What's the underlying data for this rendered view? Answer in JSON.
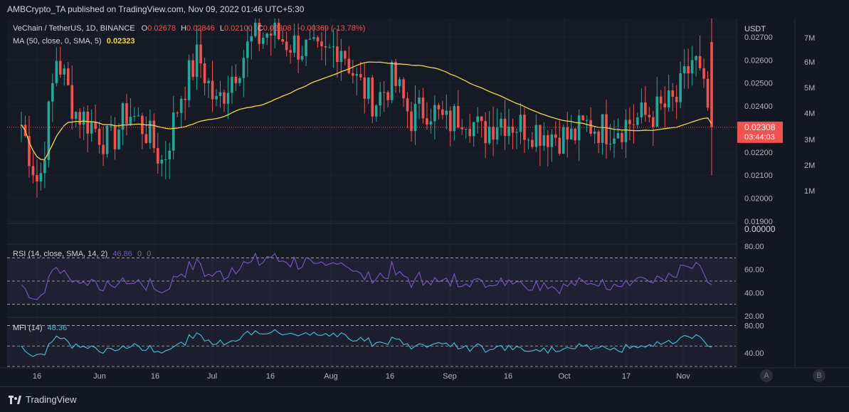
{
  "header": {
    "published": "AMBCrypto_TA published on TradingView.com, Nov 09, 2022 01:46 UTC+5:30"
  },
  "legend": {
    "symbol": "VeChain / TetherUS, 1D, BINANCE",
    "o_label": "O",
    "o": "0.02678",
    "h_label": "H",
    "h": "0.02846",
    "l_label": "L",
    "l": "0.02100",
    "c_label": "C",
    "c": "0.02308",
    "change": "-0.00369 (-13.78%)",
    "ma_label": "MA (50, close, 0, SMA, 5)",
    "ma_value": "0.02323"
  },
  "price_axis": {
    "currency": "USDT",
    "ticks": [
      "0.02700",
      "0.02600",
      "0.02500",
      "0.02400",
      "0.02200",
      "0.02100",
      "0.02000",
      "0.01900"
    ],
    "last_price": "0.02308",
    "countdown": "03:44:03",
    "volume_ticks": [
      "7M",
      "6M",
      "5M",
      "4M",
      "3M",
      "2M",
      "1M"
    ],
    "extra_pane_value": "0.00000"
  },
  "rsi": {
    "label": "RSI (14, close, SMA, 14, 2)",
    "value": "46.86",
    "extra1": "0",
    "extra2": "0",
    "ticks": [
      "80.00",
      "60.00",
      "40.00",
      "20.00"
    ]
  },
  "mfi": {
    "label": "MFI (14)",
    "value": "48.36",
    "ticks": [
      "80.00",
      "40.00"
    ]
  },
  "time_axis": {
    "ticks": [
      "16",
      "Jun",
      "16",
      "Jul",
      "16",
      "Aug",
      "16",
      "Sep",
      "16",
      "Oct",
      "17",
      "Nov"
    ]
  },
  "buttons": {
    "a": "A",
    "b": "B"
  },
  "footer": {
    "brand": "TradingView"
  },
  "colors": {
    "up": "#26a69a",
    "down": "#ef5350",
    "ma": "#f0d84a",
    "rsi": "#7e57c2",
    "mfi": "#3cc6d6",
    "bg": "#161a25"
  },
  "chart_data": {
    "type": "candlestick",
    "title": "VeChain / TetherUS, 1D, BINANCE",
    "series": [
      {
        "name": "VeChain / TetherUS",
        "kind": "ohlc",
        "anchor_closes": [
          0.0232,
          0.0205,
          0.0262,
          0.0238,
          0.0232,
          0.0223,
          0.0238,
          0.023,
          0.0215,
          0.0245,
          0.0262,
          0.024,
          0.0255,
          0.0268,
          0.0272,
          0.0268,
          0.0265,
          0.026,
          0.0268,
          0.025,
          0.0242,
          0.0252,
          0.0235,
          0.024,
          0.0232,
          0.0238,
          0.0228,
          0.0235,
          0.0232,
          0.023,
          0.0228,
          0.0226,
          0.0232,
          0.023,
          0.0232,
          0.0235,
          0.0238,
          0.0242,
          0.0262,
          0.0232
        ],
        "last": {
          "open": 0.02678,
          "high": 0.02846,
          "low": 0.021,
          "close": 0.02308
        }
      },
      {
        "name": "MA (50, close, 0, SMA, 5)",
        "kind": "line",
        "last": 0.02323
      },
      {
        "name": "RSI (14, close, SMA, 14, 2)",
        "kind": "line",
        "last": 46.86
      },
      {
        "name": "MFI (14)",
        "kind": "line",
        "last": 48.36
      }
    ],
    "price_range": [
      0.019,
      0.0278
    ],
    "rsi_range": [
      20,
      80
    ],
    "mfi_range": [
      20,
      80
    ],
    "grid": true
  }
}
